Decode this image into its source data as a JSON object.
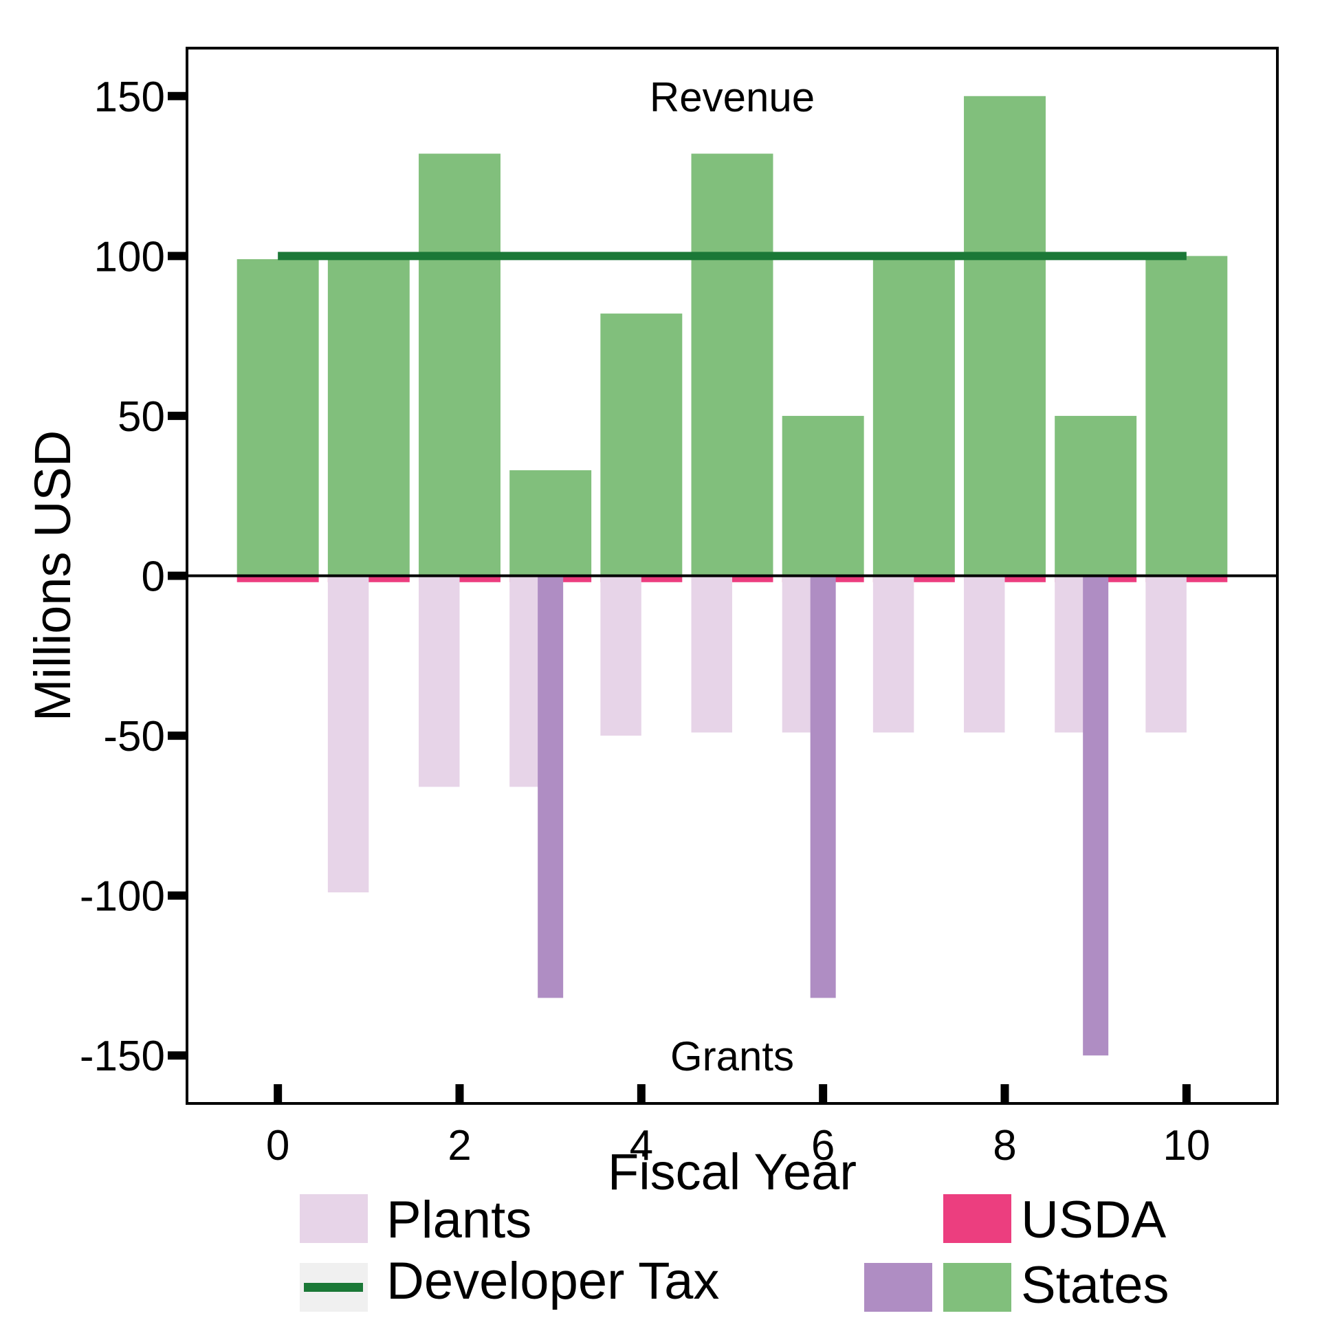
{
  "chart_data": {
    "type": "bar",
    "xlabel": "Fiscal Year",
    "ylabel": "Millions USD",
    "xlim": [
      -1,
      11
    ],
    "ylim": [
      -165,
      165
    ],
    "xticks": [
      0,
      2,
      4,
      6,
      8,
      10
    ],
    "yticks": [
      150,
      100,
      50,
      0,
      -50,
      -100,
      -150
    ],
    "x": [
      0,
      1,
      2,
      3,
      4,
      5,
      6,
      7,
      8,
      9,
      10
    ],
    "annotations": [
      {
        "text": "Revenue",
        "x": 5,
        "y": 150
      },
      {
        "text": "Grants",
        "x": 5,
        "y": -150
      }
    ],
    "series": [
      {
        "name": "States",
        "kind": "bar",
        "color": "#81bf7c",
        "values": [
          99,
          100,
          132,
          33,
          82,
          132,
          50,
          100,
          150,
          50,
          100
        ]
      },
      {
        "name": "USDA",
        "kind": "bar",
        "color": "#ec3e7f",
        "values": [
          -2,
          -2,
          -2,
          -2,
          -2,
          -2,
          -2,
          -2,
          -2,
          -2,
          -2
        ]
      },
      {
        "name": "Plants",
        "kind": "bar",
        "color": "#e7d4e8",
        "values": [
          0,
          -99,
          -66,
          -66,
          -50,
          -49,
          -49,
          -49,
          -49,
          -49,
          -49
        ]
      },
      {
        "name": "",
        "kind": "bar",
        "color": "#af8dc3",
        "values": [
          0,
          0,
          0,
          -132,
          0,
          0,
          -132,
          0,
          0,
          -150,
          0
        ]
      },
      {
        "name": "Developer Tax",
        "kind": "line",
        "color": "#1b7837",
        "values": [
          100,
          100,
          100,
          100,
          100,
          100,
          100,
          100,
          100,
          100,
          100
        ]
      }
    ],
    "legend": {
      "placement": "bottom",
      "entries": [
        {
          "label": "Plants",
          "series": "Plants"
        },
        {
          "label": "Developer Tax",
          "series": "Developer Tax"
        },
        {
          "label": "USDA",
          "series": "USDA"
        },
        {
          "label": "States",
          "series": "States"
        }
      ]
    },
    "grid": false
  }
}
